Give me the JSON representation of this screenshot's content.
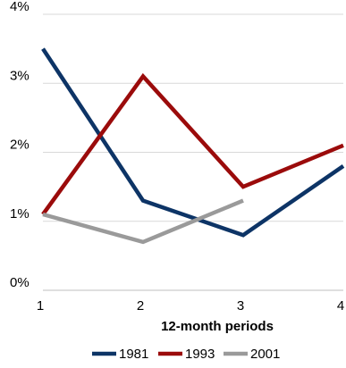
{
  "chart_data": {
    "type": "line",
    "title": "",
    "xlabel": "12-month periods",
    "ylabel": "",
    "x": [
      1,
      2,
      3,
      4
    ],
    "x_tick_labels": [
      "1",
      "2",
      "3",
      "4"
    ],
    "y_tick_labels": [
      "0%",
      "1%",
      "2%",
      "3%",
      "4%"
    ],
    "ylim": [
      0,
      4
    ],
    "xlim": [
      1,
      4
    ],
    "y_unit": "%",
    "grid": "horizontal",
    "legend_position": "bottom",
    "series": [
      {
        "name": "1981",
        "color": "#0d3466",
        "x": [
          1,
          2,
          3,
          4
        ],
        "values": [
          3.5,
          1.3,
          0.8,
          1.8
        ]
      },
      {
        "name": "1993",
        "color": "#9b0b0b",
        "x": [
          1,
          2,
          3,
          4
        ],
        "values": [
          1.1,
          3.1,
          1.5,
          2.1
        ]
      },
      {
        "name": "2001",
        "color": "#9a9a9a",
        "x": [
          1,
          2,
          3
        ],
        "values": [
          1.1,
          0.7,
          1.3
        ]
      }
    ]
  }
}
